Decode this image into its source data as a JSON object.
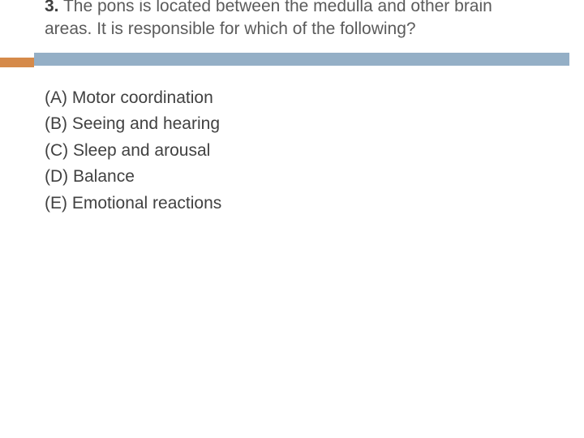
{
  "question": {
    "number": "3.",
    "text": "The pons is located between the medulla and other brain areas. It is responsible for which of the following?"
  },
  "answers": [
    {
      "label": "(A)",
      "text": "Motor coordination"
    },
    {
      "label": "(B)",
      "text": "Seeing and hearing"
    },
    {
      "label": "(C)",
      "text": "Sleep and arousal"
    },
    {
      "label": "(D)",
      "text": "Balance"
    },
    {
      "label": "(E)",
      "text": "Emotional reactions"
    }
  ],
  "colors": {
    "bar_blue": "#94afc6",
    "bar_orange": "#d58a4a",
    "question_text": "#5b5b5b",
    "answer_text": "#414141",
    "background": "#ffffff"
  },
  "typography": {
    "font_family": "Arial, Helvetica, sans-serif",
    "question_fontsize": 21,
    "answer_fontsize": 21,
    "line_height": 1.35
  }
}
